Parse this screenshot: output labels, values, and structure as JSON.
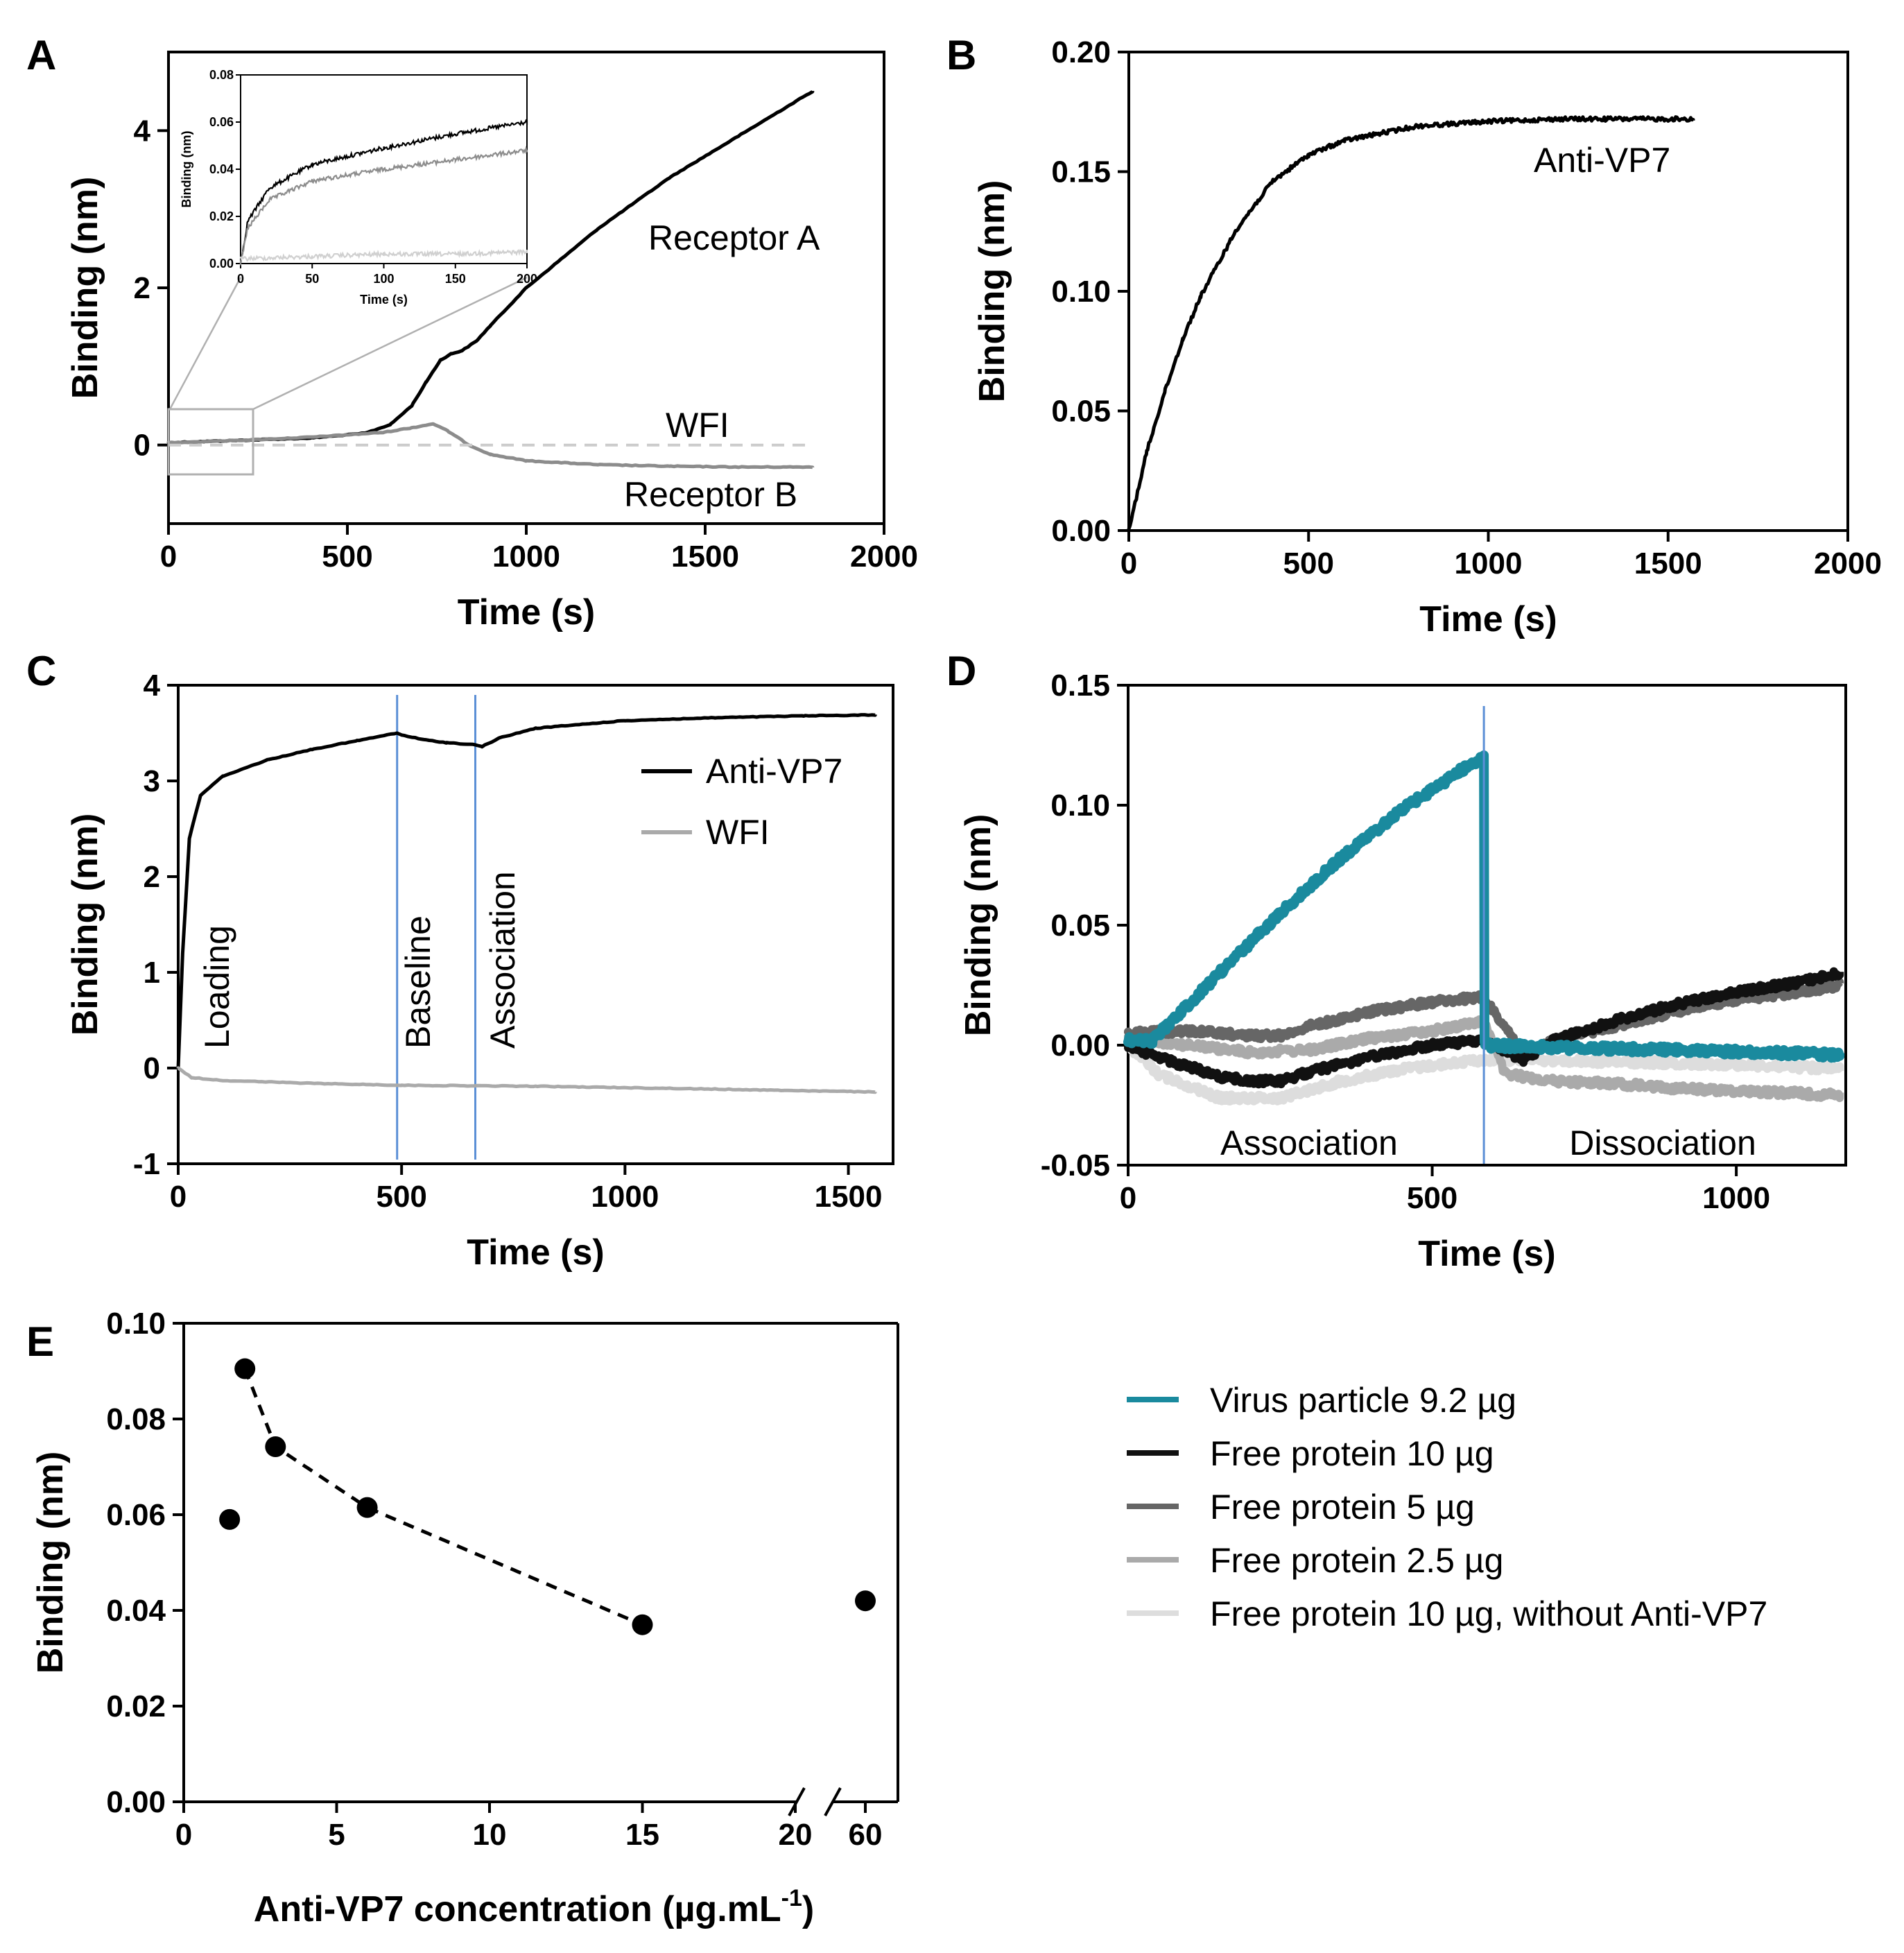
{
  "chart_data": [
    {
      "panel": "A",
      "type": "line",
      "xlabel": "Time (s)",
      "ylabel": "Binding (nm)",
      "xlim": [
        0,
        2000
      ],
      "ylim": [
        -1,
        5
      ],
      "xticks": [
        "0",
        "500",
        "1000",
        "1500",
        "2000"
      ],
      "yticks": [
        "0",
        "2",
        "4"
      ],
      "series": [
        {
          "name": "Receptor A",
          "color": "#000000",
          "x": [
            0,
            200,
            400,
            550,
            620,
            680,
            720,
            760,
            790,
            820,
            860,
            900,
            1000,
            1200,
            1400,
            1600,
            1800
          ],
          "y": [
            0.03,
            0.06,
            0.09,
            0.15,
            0.26,
            0.5,
            0.8,
            1.08,
            1.16,
            1.2,
            1.32,
            1.52,
            2.0,
            2.75,
            3.4,
            3.95,
            4.5
          ]
        },
        {
          "name": "Receptor B",
          "color": "#8c8c8c",
          "x": [
            0,
            200,
            400,
            600,
            680,
            740,
            780,
            840,
            900,
            1000,
            1200,
            1400,
            1600,
            1800
          ],
          "y": [
            0.03,
            0.06,
            0.1,
            0.16,
            0.22,
            0.27,
            0.18,
            0.0,
            -0.12,
            -0.2,
            -0.25,
            -0.27,
            -0.28,
            -0.28
          ]
        },
        {
          "name": "WFI",
          "color": "#cccccc",
          "dashed": true,
          "x": [
            0,
            600,
            1200,
            1800
          ],
          "y": [
            0.0,
            0.0,
            0.0,
            0.0
          ]
        }
      ],
      "labels": [
        "Receptor A",
        "WFI",
        "Receptor B"
      ],
      "inset": {
        "xlabel": "Time (s)",
        "ylabel": "Binding (nm)",
        "xlim": [
          0,
          200
        ],
        "ylim": [
          0,
          0.08
        ],
        "xticks": [
          "0",
          "50",
          "100",
          "150",
          "200"
        ],
        "yticks": [
          "0.00",
          "0.02",
          "0.04",
          "0.06",
          "0.08"
        ],
        "series": [
          {
            "name": "Receptor A",
            "x": [
              0,
              5,
              20,
              50,
              100,
              150,
              200
            ],
            "y": [
              0.0,
              0.018,
              0.032,
              0.042,
              0.049,
              0.055,
              0.06
            ]
          },
          {
            "name": "Receptor B",
            "x": [
              0,
              5,
              20,
              50,
              100,
              150,
              200
            ],
            "y": [
              0.0,
              0.015,
              0.027,
              0.035,
              0.04,
              0.044,
              0.048
            ]
          },
          {
            "name": "WFI",
            "x": [
              0,
              50,
              100,
              150,
              200
            ],
            "y": [
              0.002,
              0.003,
              0.004,
              0.004,
              0.005
            ]
          }
        ]
      }
    },
    {
      "panel": "B",
      "type": "line",
      "xlabel": "Time (s)",
      "ylabel": "Binding (nm)",
      "xlim": [
        0,
        2000
      ],
      "ylim": [
        0,
        0.2
      ],
      "xticks": [
        "0",
        "500",
        "1000",
        "1500",
        "2000"
      ],
      "yticks": [
        "0.00",
        "0.05",
        "0.10",
        "0.15",
        "0.20"
      ],
      "series": [
        {
          "name": "Anti-VP7",
          "color": "#000000",
          "x": [
            0,
            50,
            100,
            150,
            200,
            300,
            400,
            500,
            600,
            800,
            1000,
            1200,
            1400,
            1570
          ],
          "y": [
            0.0,
            0.033,
            0.058,
            0.08,
            0.098,
            0.126,
            0.146,
            0.157,
            0.163,
            0.169,
            0.171,
            0.172,
            0.172,
            0.172
          ]
        }
      ],
      "labels": [
        "Anti-VP7"
      ]
    },
    {
      "panel": "C",
      "type": "line",
      "xlabel": "Time (s)",
      "ylabel": "Binding (nm)",
      "xlim": [
        0,
        1600
      ],
      "ylim": [
        -1,
        4
      ],
      "xticks": [
        "0",
        "500",
        "1000",
        "1500"
      ],
      "yticks": [
        "-1",
        "0",
        "1",
        "2",
        "3",
        "4"
      ],
      "series": [
        {
          "name": "Anti-VP7",
          "color": "#000000",
          "x": [
            0,
            10,
            25,
            50,
            100,
            200,
            300,
            400,
            490,
            500,
            550,
            600,
            660,
            680,
            720,
            800,
            1000,
            1200,
            1400,
            1560
          ],
          "y": [
            0.0,
            1.2,
            2.4,
            2.85,
            3.05,
            3.22,
            3.33,
            3.42,
            3.5,
            3.48,
            3.43,
            3.4,
            3.38,
            3.36,
            3.45,
            3.55,
            3.63,
            3.66,
            3.68,
            3.69
          ]
        },
        {
          "name": "WFI",
          "color": "#aaaaaa",
          "x": [
            0,
            30,
            100,
            300,
            500,
            800,
            1200,
            1560
          ],
          "y": [
            0.0,
            -0.1,
            -0.13,
            -0.16,
            -0.18,
            -0.19,
            -0.22,
            -0.25
          ]
        }
      ],
      "vlines": [
        490,
        665
      ],
      "labels": [
        "Loading",
        "Baseline",
        "Association"
      ],
      "legend": [
        "Anti-VP7",
        "WFI"
      ]
    },
    {
      "panel": "D",
      "type": "line",
      "xlabel": "Time (s)",
      "ylabel": "Binding (nm)",
      "xlim": [
        0,
        1180
      ],
      "ylim": [
        -0.05,
        0.15
      ],
      "xticks": [
        "0",
        "500",
        "1000"
      ],
      "yticks": [
        "-0.05",
        "0.00",
        "0.05",
        "0.10",
        "0.15"
      ],
      "vlines": [
        585
      ],
      "labels": [
        "Association",
        "Dissociation"
      ],
      "series": [
        {
          "name": "Virus particle 9.2 µg",
          "color": "#1a8a9e",
          "x": [
            0,
            40,
            80,
            150,
            250,
            350,
            450,
            550,
            585,
            586,
            700,
            900,
            1170
          ],
          "y": [
            0.002,
            0.002,
            0.012,
            0.03,
            0.055,
            0.078,
            0.098,
            0.115,
            0.12,
            0.0,
            -0.001,
            -0.002,
            -0.004
          ]
        },
        {
          "name": "Free protein 10 µg",
          "color": "#111111",
          "x": [
            0,
            50,
            100,
            150,
            200,
            250,
            300,
            400,
            500,
            585,
            650,
            700,
            800,
            900,
            1000,
            1100,
            1170
          ],
          "y": [
            0.0,
            -0.005,
            -0.009,
            -0.013,
            -0.015,
            -0.015,
            -0.011,
            -0.005,
            0.0,
            0.002,
            -0.006,
            0.002,
            0.01,
            0.017,
            0.022,
            0.026,
            0.03
          ]
        },
        {
          "name": "Free protein 5 µg",
          "color": "#666666",
          "x": [
            0,
            100,
            200,
            250,
            300,
            400,
            500,
            585,
            650,
            700,
            800,
            900,
            1000,
            1100,
            1170
          ],
          "y": [
            0.005,
            0.006,
            0.004,
            0.004,
            0.008,
            0.014,
            0.018,
            0.02,
            -0.004,
            0.002,
            0.008,
            0.014,
            0.019,
            0.022,
            0.025
          ]
        },
        {
          "name": "Free protein 2.5 µg",
          "color": "#aaaaaa",
          "x": [
            0,
            100,
            200,
            300,
            400,
            500,
            585,
            620,
            700,
            800,
            900,
            1000,
            1100,
            1170
          ],
          "y": [
            0.003,
            0.0,
            -0.003,
            -0.002,
            0.003,
            0.006,
            0.01,
            -0.012,
            -0.015,
            -0.016,
            -0.018,
            -0.019,
            -0.02,
            -0.021
          ]
        },
        {
          "name": "Free protein 10 µg, without Anti-VP7",
          "color": "#dddddd",
          "x": [
            0,
            50,
            150,
            250,
            350,
            450,
            585,
            650,
            800,
            1000,
            1170
          ],
          "y": [
            0.0,
            -0.012,
            -0.022,
            -0.022,
            -0.015,
            -0.01,
            -0.006,
            -0.006,
            -0.007,
            -0.008,
            -0.01
          ]
        }
      ]
    },
    {
      "panel": "E",
      "type": "scatter",
      "xlabel": "Anti-VP7 concentration (µg.mL",
      "xlabel_superscript": "-1",
      "xlabel_suffix": ")",
      "ylabel": "Binding (nm)",
      "ylim": [
        0,
        0.1
      ],
      "xticks": [
        "0",
        "5",
        "10",
        "15",
        "20",
        "60"
      ],
      "yticks": [
        "0.00",
        "0.02",
        "0.04",
        "0.06",
        "0.08",
        "0.10"
      ],
      "axis_break": [
        20,
        60
      ],
      "points": {
        "x": [
          1.5,
          2,
          3,
          6,
          15,
          60
        ],
        "y": [
          0.059,
          0.0905,
          0.0742,
          0.0615,
          0.037,
          0.042
        ]
      },
      "fit_line": {
        "x": [
          2,
          3,
          6,
          15
        ],
        "y": [
          0.0905,
          0.0742,
          0.0615,
          0.037
        ],
        "dashed": true
      }
    }
  ],
  "legend": [
    {
      "label": "Virus particle 9.2 µg",
      "color": "#1a8a9e"
    },
    {
      "label": "Free protein 10 µg",
      "color": "#111111"
    },
    {
      "label": "Free protein 5 µg",
      "color": "#666666"
    },
    {
      "label": "Free protein 2.5 µg",
      "color": "#aaaaaa"
    },
    {
      "label": "Free protein 10 µg, without Anti-VP7",
      "color": "#dddddd"
    }
  ],
  "panel_letters": [
    "A",
    "B",
    "C",
    "D",
    "E"
  ]
}
